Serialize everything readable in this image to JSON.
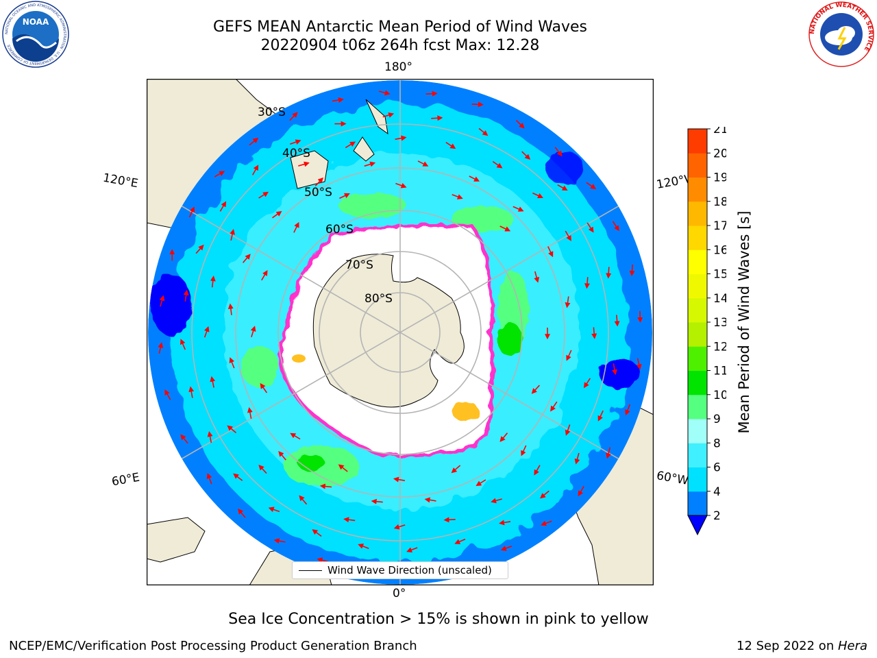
{
  "header": {
    "title_line1": "GEFS MEAN Antarctic Mean Period of Wind Waves",
    "title_line2": "20220904 t06z 264h fcst   Max: 12.28"
  },
  "logos": {
    "noaa_text": "NOAA",
    "noaa_ring": "NATIONAL OCEANIC AND ATMOSPHERIC ADMINISTRATION · U.S. DEPARTMENT OF COMMERCE",
    "nws_ring": "NATIONAL WEATHER SERVICE"
  },
  "map": {
    "projection": "south-polar-stereographic",
    "longitude_labels": {
      "top": "180°",
      "bottom": "0°",
      "upper_left": "120°E",
      "lower_left": "60°E",
      "upper_right": "120°W",
      "lower_right": "60°W"
    },
    "latitude_labels": [
      "30°S",
      "40°S",
      "50°S",
      "60°S",
      "70°S",
      "80°S"
    ],
    "colors": {
      "land": "#efebd7",
      "ice_shelf": "#ffffff",
      "grid": "#b4b4b4",
      "arrow": "#ff0000",
      "sea_ice_edge": "#ff33cc",
      "sea_ice_inner": "#ffc020"
    }
  },
  "legend": {
    "label": "Wind Wave Direction (unscaled)"
  },
  "colorbar": {
    "label": "Mean Period of Wind Waves [s]",
    "ticks": [
      "2",
      "4",
      "6",
      "8",
      "9",
      "10",
      "11",
      "12",
      "13",
      "14",
      "15",
      "16",
      "17",
      "18",
      "19",
      "20",
      "21"
    ],
    "colors": [
      "#0080ff",
      "#00e0ff",
      "#40f0ff",
      "#a0fff8",
      "#55ff80",
      "#00e400",
      "#4ef000",
      "#b4f000",
      "#d6f800",
      "#f0f800",
      "#ffff00",
      "#ffd800",
      "#ffb800",
      "#ff8c00",
      "#ff6400",
      "#ff3c00",
      "#ff0000"
    ],
    "under_color": "#0000ff"
  },
  "footer": {
    "note": "Sea Ice Concentration > 15% is shown in pink to yellow",
    "left": "NCEP/EMC/Verification Post Processing Product Generation Branch",
    "right_prefix": "12 Sep 2022 on ",
    "right_host": "Hera"
  }
}
